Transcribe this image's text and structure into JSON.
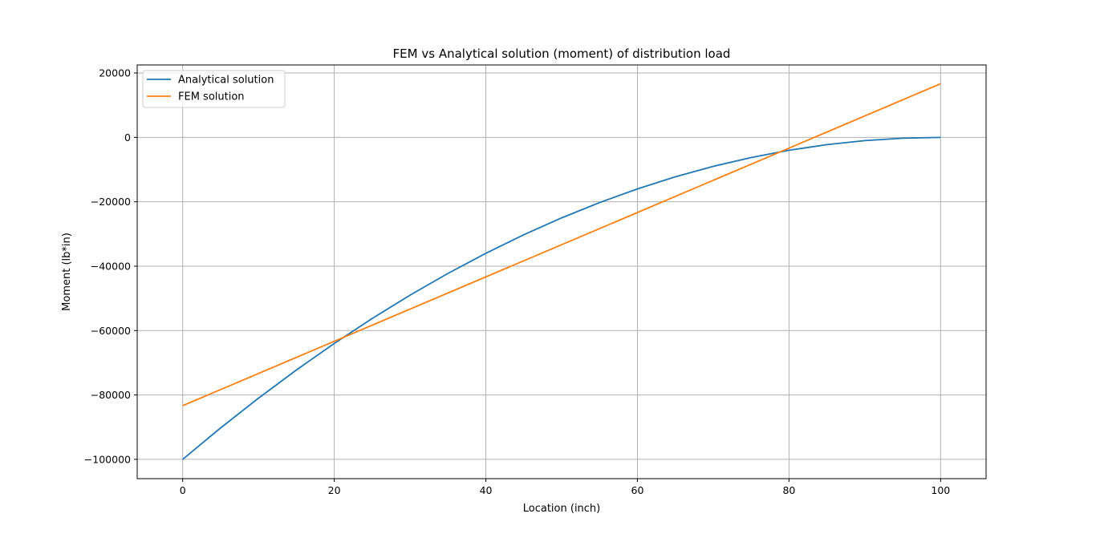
{
  "chart_data": {
    "type": "line",
    "title": "FEM vs Analytical solution (moment) of distribution load",
    "xlabel": "Location (inch)",
    "ylabel": "Moment (lb*in)",
    "xlim": [
      -6,
      106
    ],
    "ylim": [
      -106000,
      22500
    ],
    "xticks": [
      0,
      20,
      40,
      60,
      80,
      100
    ],
    "xtick_labels": [
      "0",
      "20",
      "40",
      "60",
      "80",
      "100"
    ],
    "yticks": [
      20000,
      0,
      -20000,
      -40000,
      -60000,
      -80000,
      -100000
    ],
    "ytick_labels": [
      "20000",
      "0",
      "−20000",
      "−40000",
      "−60000",
      "−80000",
      "−100000"
    ],
    "grid": true,
    "legend_position": "upper left",
    "series": [
      {
        "name": "Analytical solution",
        "color": "#1f77b4",
        "x": [
          0,
          5,
          10,
          15,
          20,
          25,
          30,
          35,
          40,
          45,
          50,
          55,
          60,
          65,
          70,
          75,
          80,
          85,
          90,
          95,
          100
        ],
        "y": [
          -100000,
          -90250,
          -81000,
          -72250,
          -64000,
          -56250,
          -49000,
          -42250,
          -36000,
          -30250,
          -25000,
          -20250,
          -16000,
          -12250,
          -9000,
          -6250,
          -4000,
          -2250,
          -1000,
          -250,
          0
        ]
      },
      {
        "name": "FEM solution",
        "color": "#ff7f0e",
        "x": [
          0,
          100
        ],
        "y": [
          -83333,
          16667
        ]
      }
    ]
  }
}
